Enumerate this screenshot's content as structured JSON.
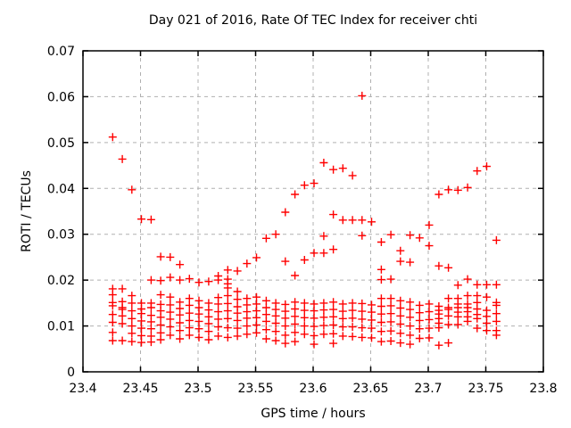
{
  "title": "Day 021 of 2016, Rate Of TEC Index for receiver chti",
  "colors": {
    "marker": "#ff0000",
    "grid": "#b0b0b0",
    "axis": "#000000",
    "background": "#ffffff",
    "text": "#000000"
  },
  "chart_data": {
    "type": "scatter",
    "title": "Day 021 of 2016, Rate Of TEC Index for receiver chti",
    "xlabel": "GPS time / hours",
    "ylabel": "ROTI / TECUs",
    "xlim": [
      23.4,
      23.8
    ],
    "ylim": [
      0,
      0.07
    ],
    "xticks": [
      23.4,
      23.45,
      23.5,
      23.55,
      23.6,
      23.65,
      23.7,
      23.75,
      23.8
    ],
    "xtick_labels": [
      "23.4",
      "23.45",
      "23.5",
      "23.55",
      "23.6",
      "23.65",
      "23.7",
      "23.75",
      "23.8"
    ],
    "yticks": [
      0,
      0.01,
      0.02,
      0.03,
      0.04,
      0.05,
      0.06,
      0.07
    ],
    "ytick_labels": [
      "0",
      "0.01",
      "0.02",
      "0.03",
      "0.04",
      "0.05",
      "0.06",
      "0.07"
    ],
    "grid": true,
    "legend": "none",
    "marker": {
      "shape": "plus",
      "color": "#ff0000",
      "size": 9
    },
    "series": [
      {
        "name": "ROTI",
        "columns": [
          {
            "t": 23.4258,
            "roti": [
              0.0512,
              0.0181,
              0.0168,
              0.0151,
              0.0144,
              0.0125,
              0.0108,
              0.0086,
              0.0068
            ]
          },
          {
            "t": 23.4342,
            "roti": [
              0.0464,
              0.0181,
              0.0153,
              0.014,
              0.0136,
              0.0122,
              0.0105,
              0.0068
            ]
          },
          {
            "t": 23.4425,
            "roti": [
              0.0397,
              0.0166,
              0.015,
              0.0133,
              0.0116,
              0.01,
              0.0084,
              0.0066
            ]
          },
          {
            "t": 23.4508,
            "roti": [
              0.0333,
              0.015,
              0.0137,
              0.0127,
              0.0111,
              0.0095,
              0.0079,
              0.0064
            ]
          },
          {
            "t": 23.4592,
            "roti": [
              0.0332,
              0.02,
              0.015,
              0.014,
              0.0123,
              0.0109,
              0.0094,
              0.0078,
              0.0065
            ]
          },
          {
            "t": 23.4675,
            "roti": [
              0.0251,
              0.0199,
              0.0168,
              0.0147,
              0.0133,
              0.0119,
              0.0102,
              0.0085,
              0.007
            ]
          },
          {
            "t": 23.4758,
            "roti": [
              0.025,
              0.0206,
              0.0163,
              0.0146,
              0.013,
              0.0115,
              0.0098,
              0.008
            ]
          },
          {
            "t": 23.4842,
            "roti": [
              0.0234,
              0.02,
              0.0152,
              0.0138,
              0.0124,
              0.0107,
              0.009,
              0.0072
            ]
          },
          {
            "t": 23.4925,
            "roti": [
              0.0203,
              0.016,
              0.0145,
              0.0128,
              0.0112,
              0.0096,
              0.008
            ]
          },
          {
            "t": 23.5008,
            "roti": [
              0.0195,
              0.0155,
              0.014,
              0.0126,
              0.011,
              0.0094,
              0.0075
            ]
          },
          {
            "t": 23.5092,
            "roti": [
              0.0197,
              0.015,
              0.0135,
              0.012,
              0.0105,
              0.0088,
              0.007
            ]
          },
          {
            "t": 23.5175,
            "roti": [
              0.0209,
              0.02,
              0.0162,
              0.0148,
              0.0131,
              0.0115,
              0.0098,
              0.0078
            ]
          },
          {
            "t": 23.5258,
            "roti": [
              0.0222,
              0.0202,
              0.0192,
              0.0183,
              0.0166,
              0.0149,
              0.0133,
              0.0116,
              0.0096,
              0.0075
            ]
          },
          {
            "t": 23.5342,
            "roti": [
              0.022,
              0.0175,
              0.0158,
              0.0142,
              0.0128,
              0.0112,
              0.0095,
              0.0078
            ]
          },
          {
            "t": 23.5425,
            "roti": [
              0.0236,
              0.016,
              0.0146,
              0.0131,
              0.0117,
              0.01,
              0.0082
            ]
          },
          {
            "t": 23.5508,
            "roti": [
              0.0249,
              0.0163,
              0.0148,
              0.0133,
              0.0118,
              0.0102,
              0.0085
            ]
          },
          {
            "t": 23.5592,
            "roti": [
              0.0291,
              0.0155,
              0.014,
              0.0125,
              0.011,
              0.0092,
              0.0072
            ]
          },
          {
            "t": 23.5675,
            "roti": [
              0.03,
              0.015,
              0.0136,
              0.0122,
              0.0106,
              0.0088,
              0.0068
            ]
          },
          {
            "t": 23.5758,
            "roti": [
              0.0348,
              0.0241,
              0.0147,
              0.0132,
              0.0117,
              0.01,
              0.008,
              0.0062
            ]
          },
          {
            "t": 23.5842,
            "roti": [
              0.0387,
              0.021,
              0.0152,
              0.0137,
              0.0121,
              0.0104,
              0.0086,
              0.0066
            ]
          },
          {
            "t": 23.5925,
            "roti": [
              0.0407,
              0.0244,
              0.015,
              0.0134,
              0.0118,
              0.01,
              0.0082
            ]
          },
          {
            "t": 23.6008,
            "roti": [
              0.0411,
              0.0259,
              0.0148,
              0.0133,
              0.0117,
              0.0099,
              0.0079,
              0.006
            ]
          },
          {
            "t": 23.6092,
            "roti": [
              0.0456,
              0.0296,
              0.0259,
              0.015,
              0.0135,
              0.0119,
              0.0101,
              0.0082
            ]
          },
          {
            "t": 23.6175,
            "roti": [
              0.0441,
              0.0343,
              0.0267,
              0.0152,
              0.0136,
              0.012,
              0.0102,
              0.0083,
              0.0062
            ]
          },
          {
            "t": 23.6258,
            "roti": [
              0.0444,
              0.0331,
              0.0148,
              0.0132,
              0.0116,
              0.0098,
              0.0078
            ]
          },
          {
            "t": 23.6342,
            "roti": [
              0.0428,
              0.0331,
              0.015,
              0.0134,
              0.0117,
              0.0098,
              0.0077
            ]
          },
          {
            "t": 23.6425,
            "roti": [
              0.0602,
              0.0331,
              0.0297,
              0.0149,
              0.0132,
              0.0115,
              0.0096,
              0.0075
            ]
          },
          {
            "t": 23.6508,
            "roti": [
              0.0327,
              0.0146,
              0.013,
              0.0113,
              0.0095,
              0.0074
            ]
          },
          {
            "t": 23.6592,
            "roti": [
              0.0283,
              0.0223,
              0.0201,
              0.016,
              0.0143,
              0.0126,
              0.0108,
              0.0088,
              0.0066
            ]
          },
          {
            "t": 23.6675,
            "roti": [
              0.0299,
              0.0202,
              0.016,
              0.0144,
              0.0127,
              0.0109,
              0.0089,
              0.0067
            ]
          },
          {
            "t": 23.6758,
            "roti": [
              0.0264,
              0.0241,
              0.0155,
              0.0139,
              0.0122,
              0.0104,
              0.0084,
              0.0063
            ]
          },
          {
            "t": 23.6842,
            "roti": [
              0.0298,
              0.0239,
              0.0152,
              0.0136,
              0.0119,
              0.01,
              0.008,
              0.006
            ]
          },
          {
            "t": 23.6925,
            "roti": [
              0.0292,
              0.0145,
              0.0129,
              0.0112,
              0.0094,
              0.0073
            ]
          },
          {
            "t": 23.7008,
            "roti": [
              0.032,
              0.0275,
              0.0148,
              0.0131,
              0.0114,
              0.0095,
              0.0074
            ]
          },
          {
            "t": 23.7092,
            "roti": [
              0.0387,
              0.0231,
              0.0143,
              0.0134,
              0.0126,
              0.0116,
              0.0106,
              0.0096,
              0.0058
            ]
          },
          {
            "t": 23.7175,
            "roti": [
              0.0397,
              0.0227,
              0.016,
              0.014,
              0.0136,
              0.0122,
              0.0103,
              0.0063
            ]
          },
          {
            "t": 23.7258,
            "roti": [
              0.0396,
              0.0189,
              0.016,
              0.0148,
              0.014,
              0.013,
              0.012,
              0.0103
            ]
          },
          {
            "t": 23.7342,
            "roti": [
              0.0402,
              0.0202,
              0.0166,
              0.0148,
              0.014,
              0.0131,
              0.012,
              0.011
            ]
          },
          {
            "t": 23.7425,
            "roti": [
              0.0438,
              0.019,
              0.0166,
              0.0151,
              0.0137,
              0.0125,
              0.0116,
              0.0095
            ]
          },
          {
            "t": 23.7508,
            "roti": [
              0.0448,
              0.019,
              0.0163,
              0.0134,
              0.0121,
              0.0106,
              0.009
            ]
          },
          {
            "t": 23.7592,
            "roti": [
              0.0287,
              0.019,
              0.0151,
              0.0145,
              0.0127,
              0.011,
              0.009,
              0.008
            ]
          }
        ]
      }
    ]
  }
}
